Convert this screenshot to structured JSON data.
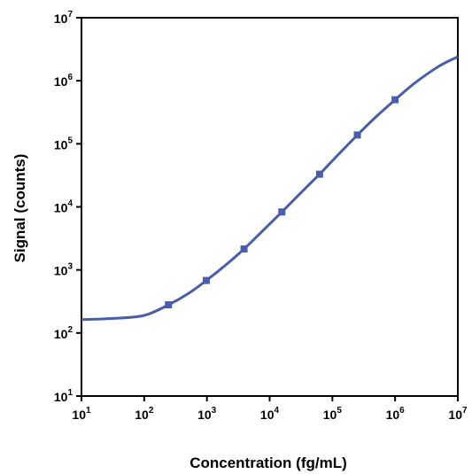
{
  "chart_data": {
    "type": "line",
    "title": "",
    "xlabel": "Concentration (fg/mL)",
    "ylabel": "Signal (counts)",
    "x_scale": "log",
    "y_scale": "log",
    "xlim": [
      10,
      10000000
    ],
    "ylim": [
      10,
      10000000
    ],
    "x_ticks": [
      {
        "base": "10",
        "exp": "1"
      },
      {
        "base": "10",
        "exp": "2"
      },
      {
        "base": "10",
        "exp": "3"
      },
      {
        "base": "10",
        "exp": "4"
      },
      {
        "base": "10",
        "exp": "5"
      },
      {
        "base": "10",
        "exp": "6"
      },
      {
        "base": "10",
        "exp": "7"
      }
    ],
    "y_ticks": [
      {
        "base": "10",
        "exp": "1"
      },
      {
        "base": "10",
        "exp": "2"
      },
      {
        "base": "10",
        "exp": "3"
      },
      {
        "base": "10",
        "exp": "4"
      },
      {
        "base": "10",
        "exp": "5"
      },
      {
        "base": "10",
        "exp": "6"
      },
      {
        "base": "10",
        "exp": "7"
      }
    ],
    "grid": false,
    "legend": "none",
    "series": [
      {
        "marker": "square",
        "color": "#4a5dab",
        "points": [
          {
            "x": 244,
            "y": 280
          },
          {
            "x": 977,
            "y": 680
          },
          {
            "x": 3906,
            "y": 2150
          },
          {
            "x": 15625,
            "y": 8300
          },
          {
            "x": 62500,
            "y": 33000
          },
          {
            "x": 250000,
            "y": 138000
          },
          {
            "x": 1000000,
            "y": 500000
          }
        ]
      }
    ],
    "fit_curve": {
      "color": "#4a5dab",
      "points": [
        {
          "x": 10,
          "y": 163
        },
        {
          "x": 32,
          "y": 170
        },
        {
          "x": 100,
          "y": 190
        },
        {
          "x": 244,
          "y": 280
        },
        {
          "x": 500,
          "y": 420
        },
        {
          "x": 977,
          "y": 680
        },
        {
          "x": 2000,
          "y": 1200
        },
        {
          "x": 3906,
          "y": 2150
        },
        {
          "x": 8000,
          "y": 4300
        },
        {
          "x": 15625,
          "y": 8300
        },
        {
          "x": 32000,
          "y": 17000
        },
        {
          "x": 62500,
          "y": 33000
        },
        {
          "x": 125000,
          "y": 68000
        },
        {
          "x": 250000,
          "y": 138000
        },
        {
          "x": 500000,
          "y": 270000
        },
        {
          "x": 1000000,
          "y": 500000
        },
        {
          "x": 2000000,
          "y": 900000
        },
        {
          "x": 5000000,
          "y": 1700000
        },
        {
          "x": 10000000,
          "y": 2400000
        }
      ]
    }
  }
}
